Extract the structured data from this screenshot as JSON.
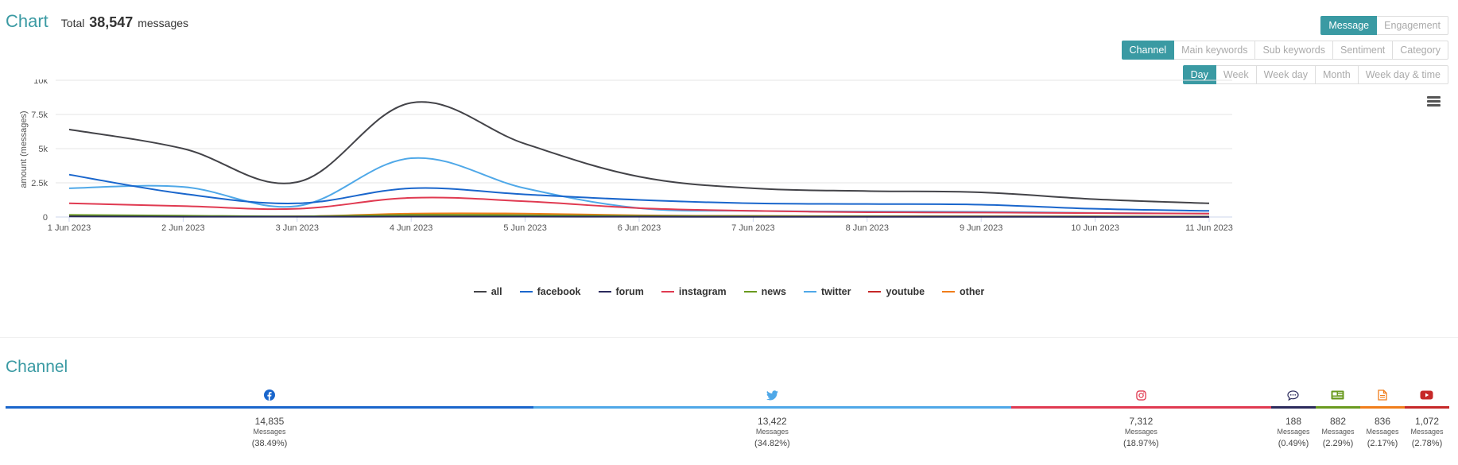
{
  "header": {
    "title": "Chart",
    "total_prefix": "Total",
    "total_value": "38,547",
    "total_suffix": "messages"
  },
  "mode_buttons": [
    {
      "label": "Message",
      "active": true
    },
    {
      "label": "Engagement",
      "active": false
    }
  ],
  "dimension_buttons": [
    {
      "label": "Channel",
      "active": true
    },
    {
      "label": "Main keywords",
      "active": false
    },
    {
      "label": "Sub keywords",
      "active": false
    },
    {
      "label": "Sentiment",
      "active": false
    },
    {
      "label": "Category",
      "active": false
    }
  ],
  "time_buttons": [
    {
      "label": "Day",
      "active": true
    },
    {
      "label": "Week",
      "active": false
    },
    {
      "label": "Week day",
      "active": false
    },
    {
      "label": "Month",
      "active": false
    },
    {
      "label": "Week day & time",
      "active": false
    }
  ],
  "chart_data": {
    "type": "line",
    "x": [
      "1 Jun 2023",
      "2 Jun 2023",
      "3 Jun 2023",
      "4 Jun 2023",
      "5 Jun 2023",
      "6 Jun 2023",
      "7 Jun 2023",
      "8 Jun 2023",
      "9 Jun 2023",
      "10 Jun 2023",
      "11 Jun 2023"
    ],
    "ylabel": "amount (messages)",
    "ylim": [
      0,
      10000
    ],
    "yticks": [
      {
        "v": 0,
        "label": "0"
      },
      {
        "v": 2500,
        "label": "2.5k"
      },
      {
        "v": 5000,
        "label": "5k"
      },
      {
        "v": 7500,
        "label": "7.5k"
      },
      {
        "v": 10000,
        "label": "10k"
      }
    ],
    "grid": true,
    "legend_position": "bottom",
    "series": [
      {
        "name": "all",
        "color": "#434348",
        "values": [
          6400,
          5000,
          2550,
          8350,
          5350,
          2950,
          2100,
          1900,
          1800,
          1300,
          1000
        ]
      },
      {
        "name": "facebook",
        "color": "#1a66cc",
        "values": [
          3100,
          1700,
          1000,
          2100,
          1650,
          1250,
          1000,
          950,
          900,
          600,
          450
        ]
      },
      {
        "name": "forum",
        "color": "#2b2a5c",
        "values": [
          40,
          25,
          20,
          30,
          30,
          20,
          15,
          15,
          15,
          10,
          10
        ]
      },
      {
        "name": "instagram",
        "color": "#e03a51",
        "values": [
          1000,
          800,
          600,
          1400,
          1150,
          650,
          450,
          350,
          330,
          280,
          250
        ]
      },
      {
        "name": "news",
        "color": "#6a9a1f",
        "values": [
          150,
          100,
          50,
          150,
          130,
          80,
          60,
          50,
          40,
          35,
          30
        ]
      },
      {
        "name": "twitter",
        "color": "#4fa8e8",
        "values": [
          2100,
          2200,
          800,
          4300,
          2100,
          650,
          450,
          400,
          380,
          300,
          250
        ]
      },
      {
        "name": "youtube",
        "color": "#c62828",
        "values": [
          60,
          50,
          40,
          150,
          120,
          80,
          70,
          60,
          50,
          40,
          35
        ]
      },
      {
        "name": "other",
        "color": "#f07d1a",
        "values": [
          80,
          60,
          40,
          250,
          250,
          120,
          70,
          50,
          40,
          30,
          25
        ]
      }
    ]
  },
  "channel_section": {
    "title": "Channel",
    "items": [
      {
        "icon": "facebook-icon",
        "color": "#1a66cc",
        "count": "14,835",
        "label": "Messages",
        "percent": "(38.49%)",
        "share": 38.49
      },
      {
        "icon": "twitter-icon",
        "color": "#4fa8e8",
        "count": "13,422",
        "label": "Messages",
        "percent": "(34.82%)",
        "share": 34.82
      },
      {
        "icon": "instagram-icon",
        "color": "#e03a51",
        "count": "7,312",
        "label": "Messages",
        "percent": "(18.97%)",
        "share": 18.97
      },
      {
        "icon": "forum-icon",
        "color": "#2b2a5c",
        "count": "188",
        "label": "Messages",
        "percent": "(0.49%)",
        "share": 0.49
      },
      {
        "icon": "news-icon",
        "color": "#6a9a1f",
        "count": "882",
        "label": "Messages",
        "percent": "(2.29%)",
        "share": 2.29
      },
      {
        "icon": "other-icon",
        "color": "#f07d1a",
        "count": "836",
        "label": "Messages",
        "percent": "(2.17%)",
        "share": 2.17
      },
      {
        "icon": "youtube-icon",
        "color": "#c62828",
        "count": "1,072",
        "label": "Messages",
        "percent": "(2.78%)",
        "share": 2.78
      }
    ]
  }
}
